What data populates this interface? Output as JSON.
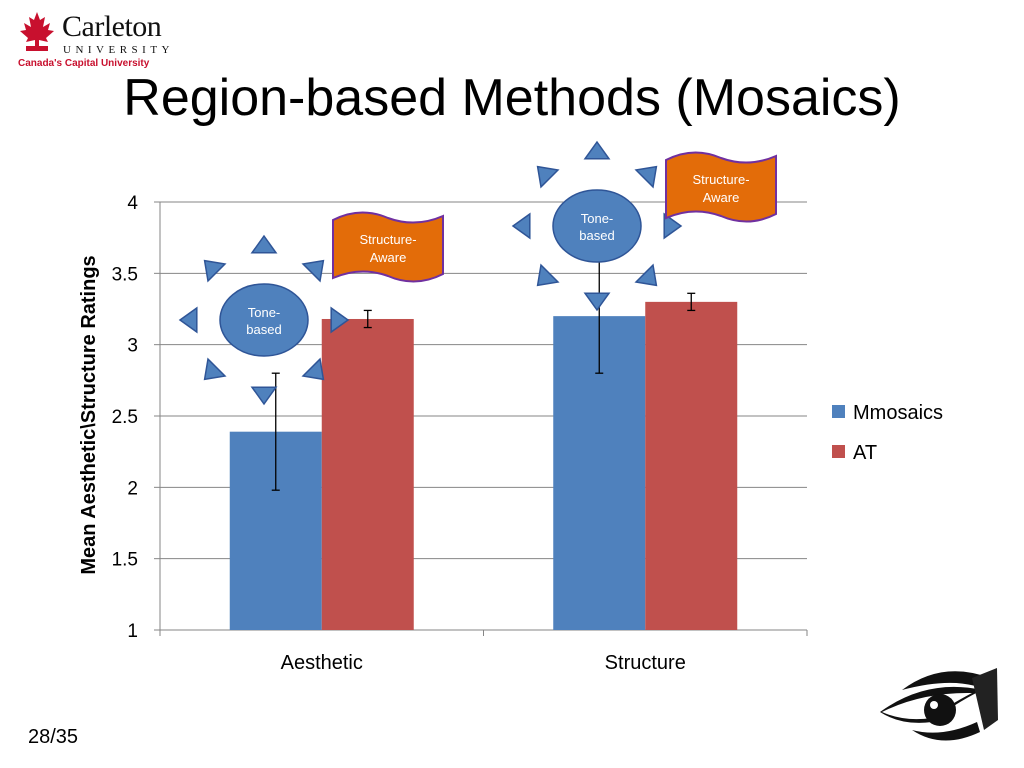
{
  "logo": {
    "name": "Carleton",
    "university": "UNIVERSITY",
    "tagline": "Canada's Capital University",
    "brand_color": "#c8102e"
  },
  "slide": {
    "title": "Region-based Methods (Mosaics)",
    "page_number": "28/35"
  },
  "chart_data": {
    "type": "bar",
    "categories": [
      "Aesthetic",
      "Structure"
    ],
    "series": [
      {
        "name": "Mmosaics",
        "color": "#4f81bd",
        "values": [
          2.39,
          3.2
        ],
        "error": [
          0.41,
          0.4
        ]
      },
      {
        "name": "AT",
        "color": "#c0504d",
        "values": [
          3.18,
          3.3
        ],
        "error": [
          0.06,
          0.06
        ]
      }
    ],
    "ylabel": "Mean Aesthetic\\Structure Ratings",
    "xlabel": "",
    "ylim": [
      1,
      4
    ],
    "yticks": [
      "1",
      "1.5",
      "2",
      "2.5",
      "3",
      "3.5",
      "4"
    ],
    "grid": true,
    "legend_position": "right",
    "annotations": [
      {
        "shape": "sun",
        "lines": [
          "Tone-",
          "based"
        ],
        "fill": "#4f81bd"
      },
      {
        "shape": "wave-flag",
        "lines": [
          "Structure-",
          "Aware"
        ],
        "fill": "#e36c09"
      },
      {
        "shape": "sun",
        "lines": [
          "Tone-",
          "based"
        ],
        "fill": "#4f81bd"
      },
      {
        "shape": "wave-flag",
        "lines": [
          "Structure-",
          "Aware"
        ],
        "fill": "#e36c09"
      }
    ]
  }
}
